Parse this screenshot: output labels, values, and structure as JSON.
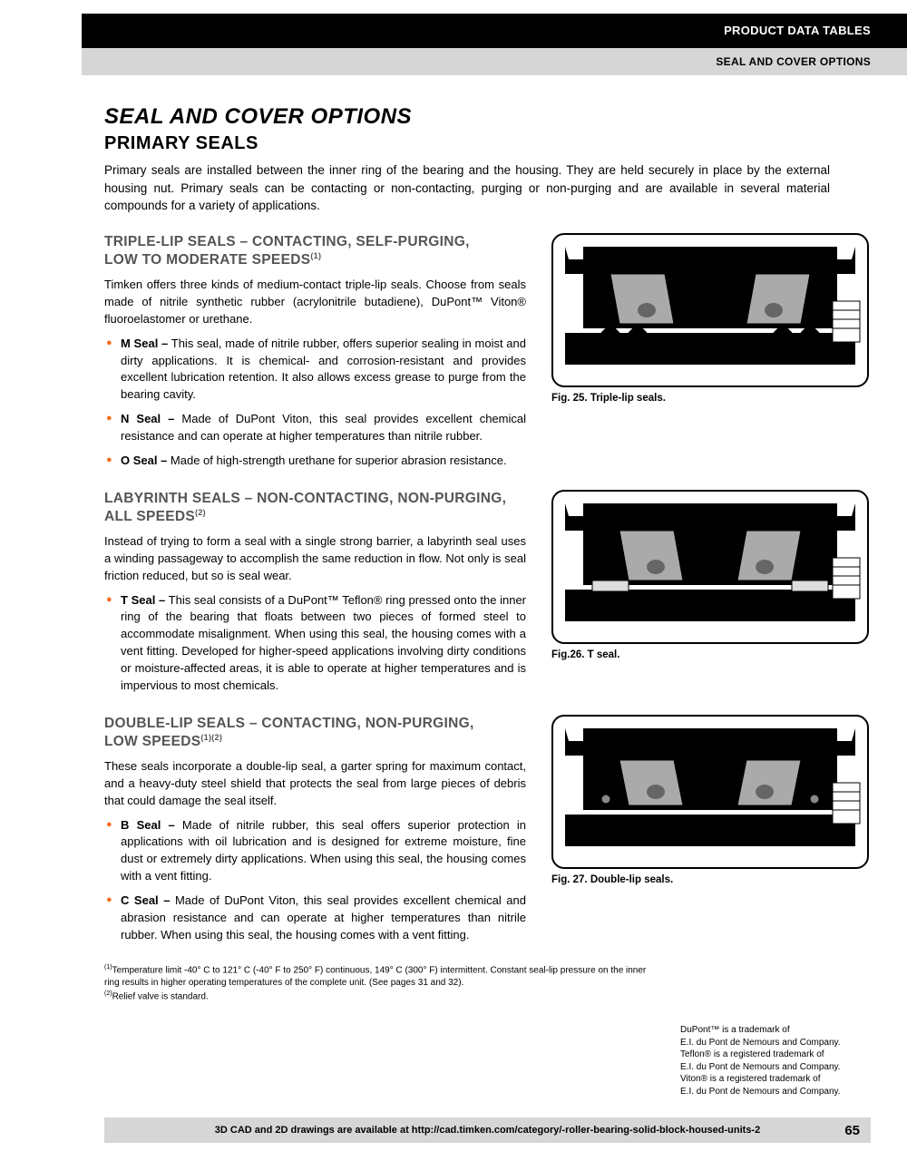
{
  "header": {
    "black_bar": "PRODUCT DATA TABLES",
    "gray_bar": "SEAL AND COVER OPTIONS"
  },
  "titles": {
    "main": "SEAL AND COVER OPTIONS",
    "sub": "PRIMARY SEALS"
  },
  "intro": "Primary seals are installed between the inner ring of the bearing and the housing. They are held securely in place by the external housing nut. Primary seals can be contacting or non-contacting, purging or non-purging and are available in several material compounds for a variety of applications.",
  "sections": [
    {
      "head_line1": "TRIPLE-LIP SEALS – CONTACTING, SELF-PURGING,",
      "head_line2": "LOW TO MODERATE SPEEDS",
      "head_sup": "(1)",
      "body": "Timken offers three kinds of medium-contact triple-lip seals. Choose from seals made of nitrile synthetic rubber (acrylonitrile butadiene), DuPont™ Viton® fluoroelastomer or urethane.",
      "bullets": [
        {
          "label": "M Seal –",
          "text": " This seal, made of nitrile rubber, offers superior sealing in moist and dirty applications. It is chemical- and corrosion-resistant and provides excellent lubrication retention. It also allows excess grease to purge from the bearing cavity."
        },
        {
          "label": "N Seal –",
          "text": " Made of DuPont Viton, this seal provides excellent chemical resistance and can operate at higher temperatures than nitrile rubber."
        },
        {
          "label": "O Seal –",
          "text": " Made of high-strength urethane for superior abrasion resistance."
        }
      ],
      "fig_caption": "Fig. 25. Triple-lip seals."
    },
    {
      "head_line1": "LABYRINTH SEALS – NON-CONTACTING, NON-PURGING,",
      "head_line2": "ALL SPEEDS",
      "head_sup": "(2)",
      "body": "Instead of trying to form a seal with a single strong barrier, a labyrinth seal uses a winding passageway to accomplish the same reduction in flow. Not only is seal friction reduced, but so is seal wear.",
      "bullets": [
        {
          "label": "T Seal –",
          "text": " This seal consists of a DuPont™ Teflon® ring pressed onto the inner ring of the bearing that floats between two pieces of formed steel to accommodate misalignment. When using this seal, the housing comes with a vent fitting. Developed for higher-speed applications involving dirty conditions or moisture-affected areas, it is able to operate at higher temperatures and is impervious to most chemicals."
        }
      ],
      "fig_caption": "Fig.26. T seal."
    },
    {
      "head_line1": "DOUBLE-LIP SEALS – CONTACTING, NON-PURGING,",
      "head_line2": "LOW SPEEDS",
      "head_sup": "(1)(2)",
      "body": "These seals incorporate a double-lip seal, a garter spring for maximum contact, and a heavy-duty steel shield that protects the seal from large pieces of debris that could damage the seal itself.",
      "bullets": [
        {
          "label": "B Seal –",
          "text": " Made of nitrile rubber, this seal offers superior protection in applications with oil lubrication and is designed for extreme moisture, fine dust or extremely dirty applications. When using this seal, the housing comes with a vent fitting."
        },
        {
          "label": "C Seal –",
          "text": " Made of DuPont Viton, this seal provides excellent chemical and abrasion resistance and can operate at higher temperatures than nitrile rubber. When using this seal, the housing comes with a vent fitting."
        }
      ],
      "fig_caption": "Fig. 27. Double-lip seals."
    }
  ],
  "footnotes": {
    "f1": "Temperature limit -40° C to 121° C (-40° F to 250° F) continuous, 149° C (300° F) intermittent. Constant seal-lip pressure on the inner ring results in higher operating temperatures of the complete unit. (See pages 31 and 32).",
    "f2": "Relief valve is standard."
  },
  "trademarks": "DuPont™ is a trademark of\nE.I. du Pont de Nemours and Company.\nTeflon® is a registered trademark of\nE.I. du Pont de Nemours and Company.\nViton® is a registered trademark of\nE.I. du Pont de Nemours and Company.",
  "footer": {
    "text": "3D CAD and 2D drawings are available at http://cad.timken.com/category/-roller-bearing-solid-block-housed-units-2",
    "page": "65"
  },
  "colors": {
    "bullet": "#f36f21",
    "section_head": "#555555",
    "gray_bar": "#d6d6d6"
  }
}
